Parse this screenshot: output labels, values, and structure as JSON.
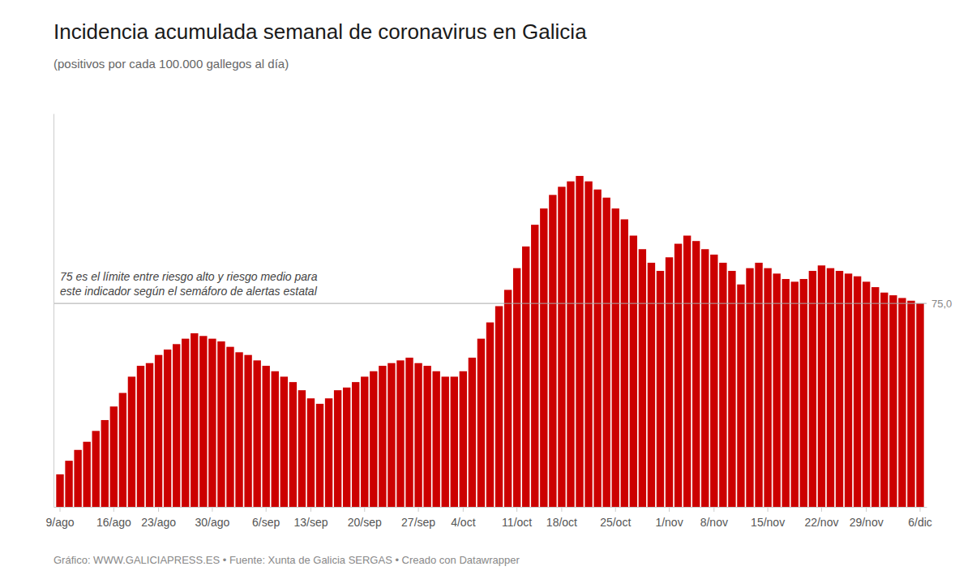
{
  "chart_data": {
    "type": "bar",
    "title": "Incidencia acumulada semanal de coronavirus en Galicia",
    "subtitle": "(positivos por cada 100.000 gallegos al día)",
    "footer": "Gráfico: WWW.GALICIAPRESS.ES • Fuente: Xunta de Galicia SERGAS • Creado con Datawrapper",
    "annotations": [
      {
        "text": "75 es el límite entre riesgo alto y riesgo medio para\neste indicador según el semáforo de alertas estatal"
      }
    ],
    "reference_line": {
      "value": 75.0,
      "label": "75,0"
    },
    "color": "#cc0000",
    "categories": [
      "9/ago",
      null,
      null,
      null,
      null,
      null,
      "16/ago",
      null,
      null,
      null,
      null,
      "23/ago",
      null,
      null,
      null,
      null,
      null,
      "30/ago",
      null,
      null,
      null,
      null,
      null,
      "6/sep",
      null,
      null,
      null,
      null,
      "13/sep",
      null,
      null,
      null,
      null,
      null,
      "20/sep",
      null,
      null,
      null,
      null,
      null,
      "27/sep",
      null,
      null,
      null,
      null,
      "4/oct",
      null,
      null,
      null,
      null,
      null,
      "11/oct",
      null,
      null,
      null,
      null,
      "18/oct",
      null,
      null,
      null,
      null,
      null,
      "25/oct",
      null,
      null,
      null,
      null,
      null,
      "1/nov",
      null,
      null,
      null,
      null,
      "8/nov",
      null,
      null,
      null,
      null,
      null,
      "15/nov",
      null,
      null,
      null,
      null,
      null,
      "22/nov",
      null,
      null,
      null,
      null,
      "29/nov",
      null,
      null,
      null,
      null,
      null,
      "6/dic"
    ],
    "values": [
      12,
      17,
      21,
      24,
      28,
      32,
      37,
      42,
      48,
      52,
      53,
      56,
      58,
      60,
      62,
      64,
      63,
      62,
      61,
      59,
      57,
      56,
      54,
      52,
      50,
      48,
      46,
      43,
      40,
      38,
      40,
      43,
      44,
      46,
      48,
      50,
      52,
      53,
      54,
      55,
      53,
      52,
      50,
      48,
      48,
      50,
      55,
      62,
      68,
      74,
      80,
      88,
      96,
      104,
      110,
      115,
      118,
      120,
      122,
      120,
      117,
      114,
      110,
      106,
      100,
      95,
      90,
      87,
      92,
      97,
      100,
      98,
      95,
      93,
      90,
      87,
      82,
      88,
      90,
      88,
      86,
      84,
      83,
      84,
      87,
      89,
      88,
      87,
      86,
      85,
      83,
      81,
      79,
      78,
      77,
      76,
      75
    ],
    "ylim": [
      0,
      145
    ],
    "yticks": [],
    "grid": false,
    "tick_labels": "x"
  }
}
